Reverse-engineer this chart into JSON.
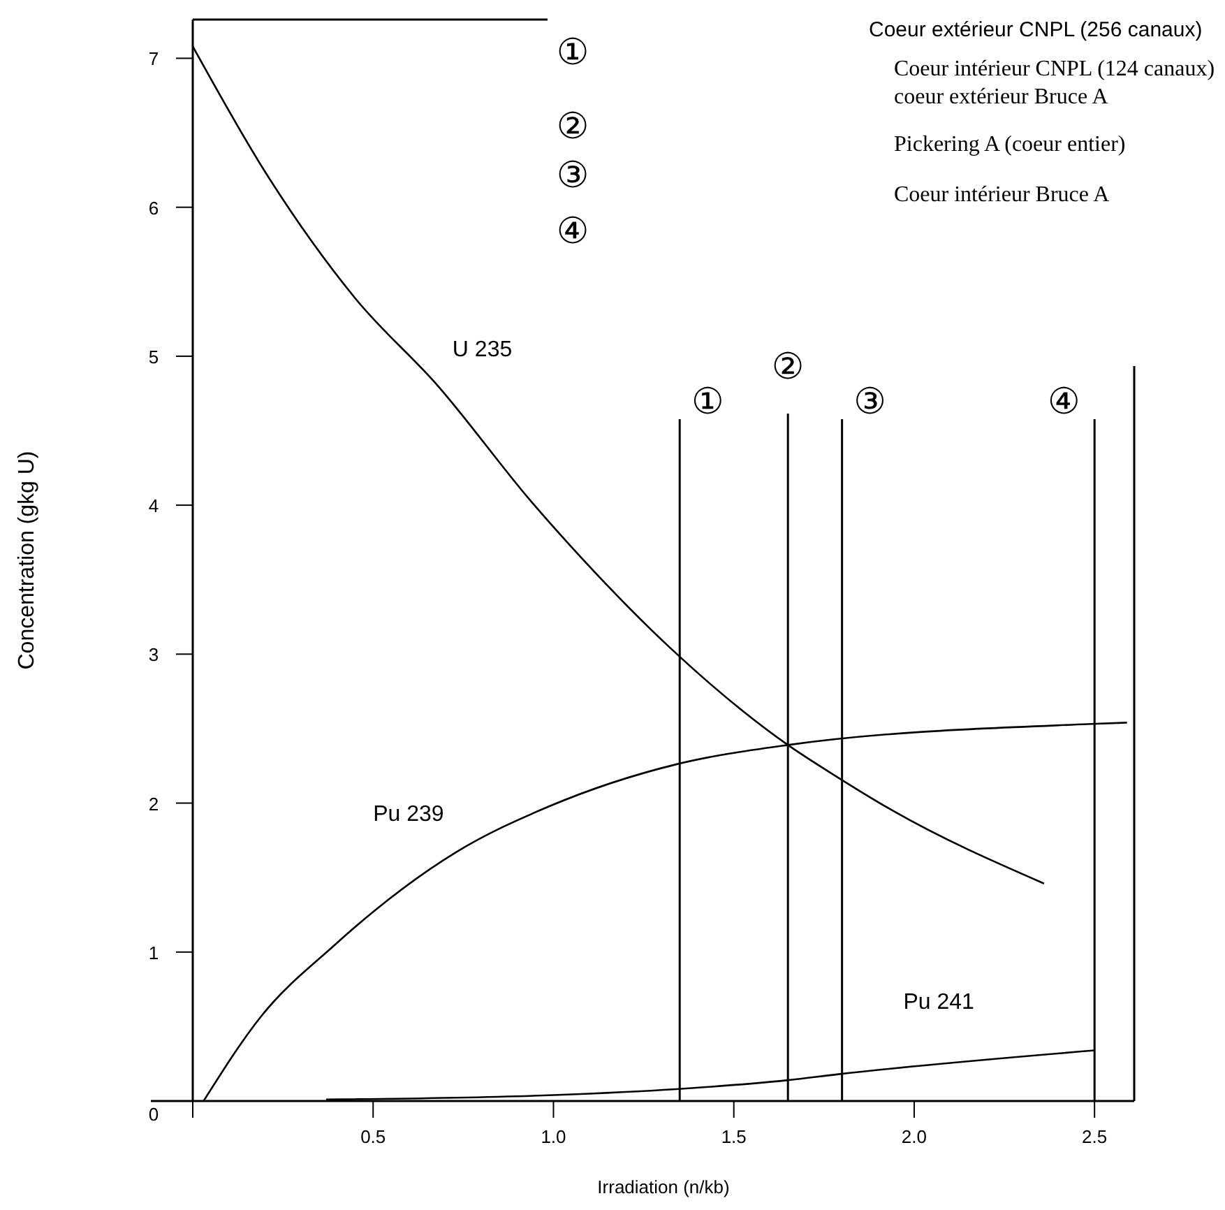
{
  "chart_data": {
    "type": "line",
    "xlabel": "Irradiation (n/kb)",
    "ylabel": "Concentration (gkg U)",
    "xlim": [
      0,
      2.61
    ],
    "ylim": [
      0,
      7.26
    ],
    "xticks": [
      0.5,
      {
        "value": 1,
        "label": "1.0"
      },
      1.5,
      {
        "value": 2,
        "label": "2.0"
      },
      2.5
    ],
    "yticks": [
      0,
      1,
      2,
      3,
      4,
      5,
      6,
      7
    ],
    "marker": "none",
    "line_style": "solid",
    "series": [
      {
        "name": "U 235",
        "color": "#000000",
        "x": [
          0.0,
          0.2,
          0.45,
          0.68,
          0.94,
          1.08,
          1.32,
          1.65,
          1.79,
          1.94,
          2.36
        ],
        "values": [
          7.08,
          6.24,
          5.39,
          4.8,
          4.02,
          3.64,
          3.05,
          2.39,
          2.17,
          1.95,
          1.46
        ]
      },
      {
        "name": "Pu 239",
        "color": "#000000",
        "x": [
          0.03,
          0.19,
          0.39,
          0.5,
          0.73,
          0.99,
          1.34,
          1.65,
          2.48,
          2.59
        ],
        "values": [
          0,
          0.57,
          1.04,
          1.27,
          1.67,
          1.98,
          2.26,
          2.39,
          2.53,
          2.54
        ]
      },
      {
        "name": "Pu 241",
        "color": "#000000",
        "x": [
          0.37,
          1.0,
          1.34,
          1.65,
          1.79,
          2.5
        ],
        "values": [
          0.01,
          0.04,
          0.08,
          0.14,
          0.18,
          0.34
        ]
      }
    ],
    "ref_lines": [
      {
        "axis": "x",
        "value": 1.35,
        "label": "①"
      },
      {
        "axis": "x",
        "value": 1.65,
        "label": "②"
      },
      {
        "axis": "x",
        "value": 1.8,
        "label": "③"
      },
      {
        "axis": "x",
        "value": 2.5,
        "label": "④"
      }
    ],
    "annotations": [
      "Coeur extérieur CNPL (256 canaux)",
      "Coeur intérieur CNPL (124 canaux) coeur extérieur Bruce A",
      "Pickering A (coeur entier)",
      "Coeur intérieur Bruce A"
    ]
  }
}
